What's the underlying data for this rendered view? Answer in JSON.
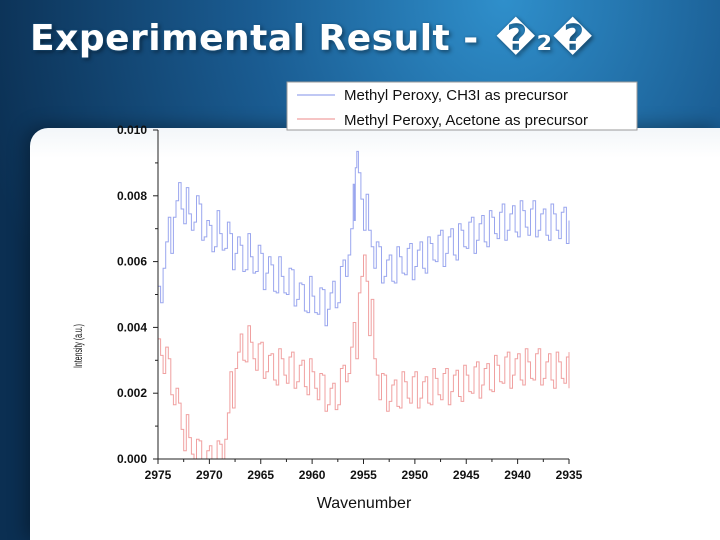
{
  "slide": {
    "title": "Experimental Result - ",
    "title_suffix": "�₂�"
  },
  "colors": {
    "series_blue": "#9aa6ee",
    "series_pink": "#f0a0a0",
    "axis": "#222222"
  },
  "chart_data": {
    "type": "line",
    "title": "",
    "xlabel": "Wavenumber",
    "ylabel": "Intensity (a.u.)",
    "xlim": [
      2975,
      2935
    ],
    "ylim": [
      0.0,
      0.01
    ],
    "x_reversed": true,
    "xticks": [
      2975,
      2970,
      2965,
      2960,
      2955,
      2950,
      2945,
      2940,
      2935
    ],
    "yticks": [
      "0.000",
      "0.002",
      "0.004",
      "0.006",
      "0.008",
      "0.010"
    ],
    "legend_position": "top-right",
    "series": [
      {
        "name": "Methyl Peroxy, CH3I as precursor",
        "color": "#9aa6ee",
        "points": [
          [
            2975.0,
            0.005
          ],
          [
            2974.5,
            0.0062
          ],
          [
            2974.0,
            0.0068
          ],
          [
            2973.5,
            0.0076
          ],
          [
            2973.0,
            0.008
          ],
          [
            2972.5,
            0.0077
          ],
          [
            2972.0,
            0.0072
          ],
          [
            2971.5,
            0.0076
          ],
          [
            2971.0,
            0.0072
          ],
          [
            2970.5,
            0.007
          ],
          [
            2970.0,
            0.0067
          ],
          [
            2969.5,
            0.007
          ],
          [
            2969.0,
            0.0066
          ],
          [
            2968.5,
            0.0068
          ],
          [
            2968.0,
            0.0063
          ],
          [
            2967.5,
            0.0065
          ],
          [
            2967.0,
            0.0061
          ],
          [
            2966.5,
            0.0063
          ],
          [
            2966.0,
            0.0059
          ],
          [
            2965.5,
            0.0061
          ],
          [
            2965.0,
            0.0057
          ],
          [
            2964.5,
            0.0059
          ],
          [
            2964.0,
            0.0055
          ],
          [
            2963.5,
            0.0056
          ],
          [
            2963.0,
            0.0053
          ],
          [
            2962.5,
            0.0054
          ],
          [
            2962.0,
            0.0052
          ],
          [
            2961.5,
            0.0051
          ],
          [
            2961.0,
            0.0049
          ],
          [
            2960.5,
            0.005
          ],
          [
            2960.0,
            0.0047
          ],
          [
            2959.5,
            0.0048
          ],
          [
            2959.0,
            0.0046
          ],
          [
            2958.5,
            0.0048
          ],
          [
            2958.0,
            0.005
          ],
          [
            2957.5,
            0.0053
          ],
          [
            2957.0,
            0.0058
          ],
          [
            2956.5,
            0.0066
          ],
          [
            2956.0,
            0.0078
          ],
          [
            2955.8,
            0.0091
          ],
          [
            2955.5,
            0.0083
          ],
          [
            2955.0,
            0.0075
          ],
          [
            2954.5,
            0.0067
          ],
          [
            2954.0,
            0.0062
          ],
          [
            2953.5,
            0.0059
          ],
          [
            2953.0,
            0.0058
          ],
          [
            2952.5,
            0.0058
          ],
          [
            2952.0,
            0.0059
          ],
          [
            2951.5,
            0.0059
          ],
          [
            2951.0,
            0.006
          ],
          [
            2950.5,
            0.006
          ],
          [
            2950.0,
            0.0061
          ],
          [
            2949.5,
            0.0062
          ],
          [
            2949.0,
            0.0062
          ],
          [
            2948.5,
            0.0063
          ],
          [
            2948.0,
            0.0064
          ],
          [
            2947.5,
            0.0064
          ],
          [
            2947.0,
            0.0065
          ],
          [
            2946.5,
            0.0066
          ],
          [
            2946.0,
            0.0066
          ],
          [
            2945.5,
            0.0067
          ],
          [
            2945.0,
            0.0068
          ],
          [
            2944.5,
            0.0068
          ],
          [
            2944.0,
            0.0069
          ],
          [
            2943.5,
            0.007
          ],
          [
            2943.0,
            0.007
          ],
          [
            2942.5,
            0.0071
          ],
          [
            2942.0,
            0.0071
          ],
          [
            2941.5,
            0.0072
          ],
          [
            2941.0,
            0.0072
          ],
          [
            2940.5,
            0.0073
          ],
          [
            2940.0,
            0.0073
          ],
          [
            2939.5,
            0.0073
          ],
          [
            2939.0,
            0.0072
          ],
          [
            2938.5,
            0.0073
          ],
          [
            2938.0,
            0.0072
          ],
          [
            2937.5,
            0.0072
          ],
          [
            2937.0,
            0.0072
          ],
          [
            2936.5,
            0.0072
          ],
          [
            2936.0,
            0.0071
          ],
          [
            2935.5,
            0.0071
          ],
          [
            2935.0,
            0.007
          ]
        ]
      },
      {
        "name": "Methyl Peroxy, Acetone as precursor",
        "color": "#f0a0a0",
        "points": [
          [
            2975.0,
            0.0034
          ],
          [
            2974.5,
            0.003
          ],
          [
            2974.0,
            0.0025
          ],
          [
            2973.5,
            0.0019
          ],
          [
            2973.0,
            0.0013
          ],
          [
            2972.5,
            0.0008
          ],
          [
            2972.0,
            0.0004
          ],
          [
            2971.5,
            0.0002
          ],
          [
            2971.0,
            0.0
          ],
          [
            2970.5,
            0.0
          ],
          [
            2970.0,
            0.0
          ],
          [
            2969.5,
            0.0
          ],
          [
            2969.0,
            0.0002
          ],
          [
            2968.5,
            0.001
          ],
          [
            2968.0,
            0.0021
          ],
          [
            2967.5,
            0.003
          ],
          [
            2967.0,
            0.0034
          ],
          [
            2966.5,
            0.0035
          ],
          [
            2966.0,
            0.0033
          ],
          [
            2965.5,
            0.0031
          ],
          [
            2965.0,
            0.003
          ],
          [
            2964.5,
            0.0029
          ],
          [
            2964.0,
            0.0028
          ],
          [
            2963.5,
            0.0028
          ],
          [
            2963.0,
            0.0028
          ],
          [
            2962.5,
            0.0027
          ],
          [
            2962.0,
            0.0027
          ],
          [
            2961.5,
            0.0026
          ],
          [
            2961.0,
            0.0026
          ],
          [
            2960.5,
            0.0025
          ],
          [
            2960.0,
            0.0024
          ],
          [
            2959.5,
            0.0022
          ],
          [
            2959.0,
            0.002
          ],
          [
            2958.5,
            0.0019
          ],
          [
            2958.0,
            0.0019
          ],
          [
            2957.5,
            0.0022
          ],
          [
            2957.0,
            0.0026
          ],
          [
            2956.5,
            0.003
          ],
          [
            2956.0,
            0.0036
          ],
          [
            2955.5,
            0.0053
          ],
          [
            2955.0,
            0.0058
          ],
          [
            2954.5,
            0.0043
          ],
          [
            2954.0,
            0.0028
          ],
          [
            2953.5,
            0.0022
          ],
          [
            2953.0,
            0.002
          ],
          [
            2952.5,
            0.002
          ],
          [
            2952.0,
            0.002
          ],
          [
            2951.5,
            0.0021
          ],
          [
            2951.0,
            0.0021
          ],
          [
            2950.5,
            0.0021
          ],
          [
            2950.0,
            0.0021
          ],
          [
            2949.5,
            0.0021
          ],
          [
            2949.0,
            0.0021
          ],
          [
            2948.5,
            0.0022
          ],
          [
            2948.0,
            0.0022
          ],
          [
            2947.5,
            0.0022
          ],
          [
            2947.0,
            0.0022
          ],
          [
            2946.5,
            0.0023
          ],
          [
            2946.0,
            0.0023
          ],
          [
            2945.5,
            0.0023
          ],
          [
            2945.0,
            0.0023
          ],
          [
            2944.5,
            0.0024
          ],
          [
            2944.0,
            0.0024
          ],
          [
            2943.5,
            0.0025
          ],
          [
            2943.0,
            0.0025
          ],
          [
            2942.5,
            0.0026
          ],
          [
            2942.0,
            0.0026
          ],
          [
            2941.5,
            0.0027
          ],
          [
            2941.0,
            0.0027
          ],
          [
            2940.5,
            0.0028
          ],
          [
            2940.0,
            0.0028
          ],
          [
            2939.5,
            0.0028
          ],
          [
            2939.0,
            0.0027
          ],
          [
            2938.5,
            0.0028
          ],
          [
            2938.0,
            0.0028
          ],
          [
            2937.5,
            0.0027
          ],
          [
            2937.0,
            0.0028
          ],
          [
            2936.5,
            0.0027
          ],
          [
            2936.0,
            0.0027
          ],
          [
            2935.5,
            0.0027
          ],
          [
            2935.0,
            0.0027
          ]
        ]
      }
    ]
  }
}
